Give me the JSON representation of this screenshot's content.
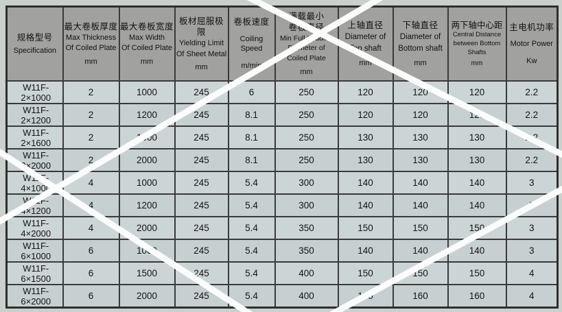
{
  "table": {
    "columns": [
      {
        "cn": [
          "规格型号"
        ],
        "en": [
          "Specification"
        ],
        "unit": ""
      },
      {
        "cn": [
          "最大卷板厚度"
        ],
        "en": [
          "Max Thickness",
          "Of Coiled Plate"
        ],
        "unit": "mm"
      },
      {
        "cn": [
          "最大卷板宽度"
        ],
        "en": [
          "Max Width",
          "Of Coiled Plate"
        ],
        "unit": "mm"
      },
      {
        "cn": [
          "板材屈服极限"
        ],
        "en": [
          "Yielding Limit",
          "Of Sheet Metal"
        ],
        "unit": "mm"
      },
      {
        "cn": [
          "卷板速度"
        ],
        "en": [
          "Coiling Speed"
        ],
        "unit": "m/min"
      },
      {
        "cn": [
          "满载最小",
          "卷板直径"
        ],
        "en": [
          "Min Full Loading",
          "Diameter of",
          "Coiled Plate"
        ],
        "unit": "mm"
      },
      {
        "cn": [
          "上轴直径"
        ],
        "en": [
          "Diameter of",
          "Top shaft"
        ],
        "unit": "mm"
      },
      {
        "cn": [
          "下轴直径"
        ],
        "en": [
          "Diameter of",
          "Bottom shaft"
        ],
        "unit": "mm"
      },
      {
        "cn": [
          "两下轴中心距"
        ],
        "en": [
          "Central Distance",
          "between Bottom",
          "Shafts"
        ],
        "unit": "mm"
      },
      {
        "cn": [
          "主电机功率"
        ],
        "en": [
          "Motor Power"
        ],
        "unit": "Kw"
      }
    ],
    "rows": [
      [
        "W11F-2×1000",
        "2",
        "1000",
        "245",
        "6",
        "250",
        "120",
        "120",
        "120",
        "2.2"
      ],
      [
        "W11F-2×1200",
        "2",
        "1200",
        "245",
        "8.1",
        "250",
        "120",
        "120",
        "120",
        "2.2"
      ],
      [
        "W11F-2×1600",
        "2",
        "1600",
        "245",
        "8.1",
        "250",
        "130",
        "130",
        "130",
        "2.2"
      ],
      [
        "W11F-2×2000",
        "2",
        "2000",
        "245",
        "8.1",
        "250",
        "130",
        "130",
        "130",
        "2.2"
      ],
      [
        "W11F-4×1000",
        "4",
        "1000",
        "245",
        "5.4",
        "300",
        "140",
        "140",
        "140",
        "3"
      ],
      [
        "W11F-4×1200",
        "4",
        "1200",
        "245",
        "5.4",
        "300",
        "140",
        "140",
        "140",
        "3"
      ],
      [
        "W11F-4×2000",
        "4",
        "2000",
        "245",
        "5.4",
        "350",
        "150",
        "150",
        "150",
        "3"
      ],
      [
        "W11F-6×1000",
        "6",
        "1000",
        "245",
        "5.4",
        "350",
        "140",
        "140",
        "140",
        "3"
      ],
      [
        "W11F-6×1500",
        "6",
        "1500",
        "245",
        "5.4",
        "400",
        "150",
        "150",
        "150",
        "4"
      ],
      [
        "W11F-6×2000",
        "6",
        "2000",
        "245",
        "5.4",
        "400",
        "160",
        "160",
        "160",
        "4"
      ]
    ]
  },
  "colors": {
    "page_background": "#cad0cc",
    "header_background": "#a1a19f",
    "cell_background": "#ccd5d5",
    "cell_background_alt": "#c6d0d1",
    "grid_border": "#3a3a3a",
    "text": "#141414",
    "stripe": "#fbfcfc"
  }
}
